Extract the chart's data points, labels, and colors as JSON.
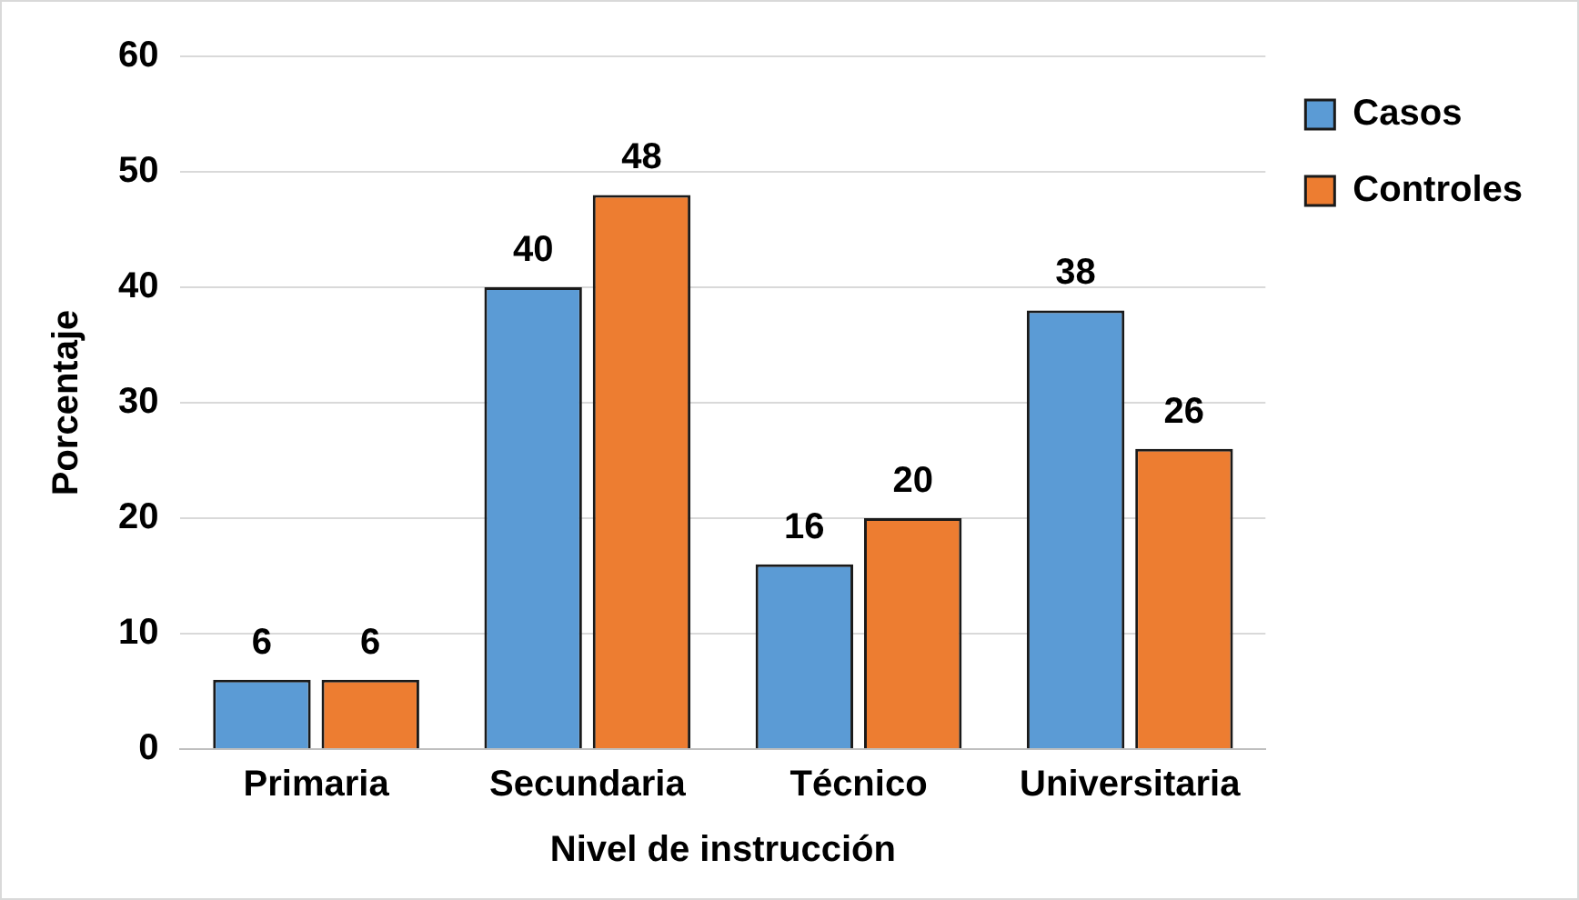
{
  "chart_data": {
    "type": "bar",
    "xlabel": "Nivel de instrucción",
    "ylabel": "Porcentaje",
    "categories": [
      "Primaria",
      "Secundaria",
      "Técnico",
      "Universitaria"
    ],
    "series": [
      {
        "name": "Casos",
        "color": "#5b9bd5",
        "values": [
          6,
          40,
          16,
          38
        ]
      },
      {
        "name": "Controles",
        "color": "#ed7d31",
        "values": [
          6,
          48,
          20,
          26
        ]
      }
    ],
    "ylim": [
      0,
      60
    ],
    "yticks": [
      0,
      10,
      20,
      30,
      40,
      50,
      60
    ],
    "grid": "y",
    "legend": "top right",
    "data_labels": true
  }
}
